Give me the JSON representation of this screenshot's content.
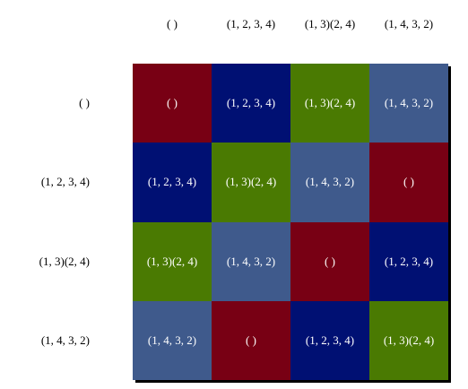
{
  "column_headers": [
    "( )",
    "(1, 2, 3, 4)",
    "(1, 3)(2, 4)",
    "(1, 4, 3, 2)"
  ],
  "row_headers": [
    "( )",
    "(1, 2, 3, 4)",
    "(1, 3)(2, 4)",
    "(1, 4, 3, 2)"
  ],
  "table": {
    "rows": [
      [
        "( )",
        "(1, 2, 3, 4)",
        "(1, 3)(2, 4)",
        "(1, 4, 3, 2)"
      ],
      [
        "(1, 2, 3, 4)",
        "(1, 3)(2, 4)",
        "(1, 4, 3, 2)",
        "( )"
      ],
      [
        "(1, 3)(2, 4)",
        "(1, 4, 3, 2)",
        "( )",
        "(1, 2, 3, 4)"
      ],
      [
        "(1, 4, 3, 2)",
        "( )",
        "(1, 2, 3, 4)",
        "(1, 3)(2, 4)"
      ]
    ]
  }
}
